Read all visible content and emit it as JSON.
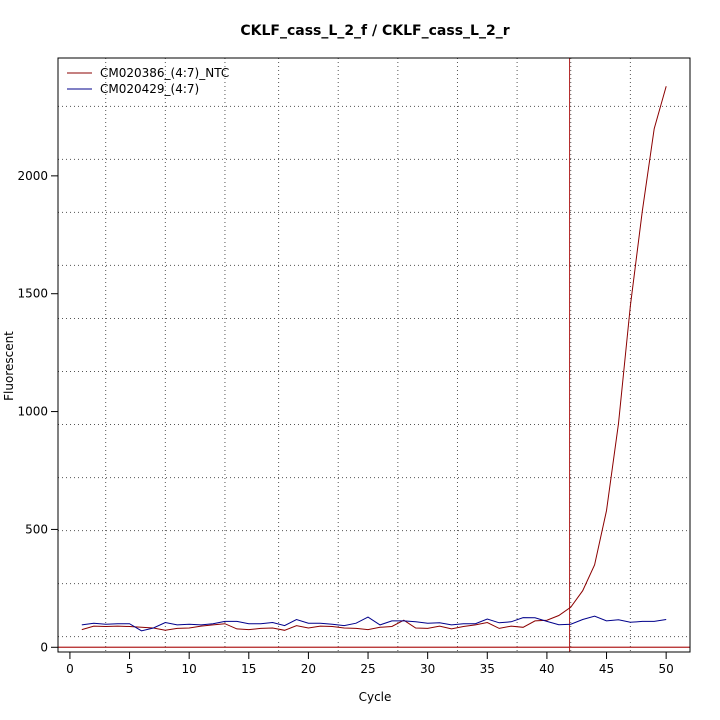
{
  "chart_data": {
    "type": "line",
    "title": "CKLF_cass_L_2_f / CKLF_cass_L_2_r",
    "xlabel": "Cycle",
    "ylabel": "Fluorescent",
    "xlim": [
      -1,
      52
    ],
    "ylim": [
      -20,
      2500
    ],
    "x_ticks": [
      0,
      5,
      10,
      15,
      20,
      25,
      30,
      35,
      40,
      45,
      50
    ],
    "y_ticks": [
      0,
      500,
      1000,
      1500,
      2000
    ],
    "grid": "dotted",
    "x_grid": [
      3,
      8,
      13,
      17.5,
      22.5,
      27.5,
      32.5,
      37.5,
      42,
      47
    ],
    "y_grid": [
      45,
      270,
      495,
      720,
      945,
      1170,
      1395,
      1620,
      1845,
      2070,
      2295
    ],
    "baseline_y": 0,
    "threshold_cycle": 41.9,
    "legend_position": "top-left",
    "x": [
      1,
      2,
      3,
      4,
      5,
      6,
      7,
      8,
      9,
      10,
      11,
      12,
      13,
      14,
      15,
      16,
      17,
      18,
      19,
      20,
      21,
      22,
      23,
      24,
      25,
      26,
      27,
      28,
      29,
      30,
      31,
      32,
      33,
      34,
      35,
      36,
      37,
      38,
      39,
      40,
      41,
      42,
      43,
      44,
      45,
      46,
      47,
      48,
      49,
      50
    ],
    "series": [
      {
        "name": "CM020386_(4:7)_NTC",
        "color": "#8b0000",
        "values": [
          75,
          90,
          88,
          90,
          88,
          85,
          82,
          72,
          80,
          82,
          90,
          95,
          100,
          78,
          75,
          80,
          82,
          72,
          92,
          82,
          90,
          88,
          82,
          80,
          75,
          85,
          88,
          115,
          82,
          80,
          90,
          78,
          88,
          95,
          105,
          80,
          90,
          85,
          112,
          115,
          135,
          170,
          240,
          350,
          580,
          950,
          1450,
          1850,
          2200,
          2380
        ]
      },
      {
        "name": "CM020429_(4:7)",
        "color": "#00008b",
        "values": [
          95,
          102,
          98,
          100,
          100,
          70,
          82,
          105,
          95,
          98,
          95,
          100,
          110,
          110,
          100,
          100,
          105,
          92,
          118,
          102,
          102,
          98,
          92,
          102,
          128,
          95,
          112,
          112,
          108,
          102,
          104,
          95,
          100,
          100,
          120,
          104,
          108,
          126,
          125,
          110,
          96,
          98,
          118,
          132,
          112,
          117,
          106,
          110,
          110,
          118
        ]
      }
    ]
  }
}
